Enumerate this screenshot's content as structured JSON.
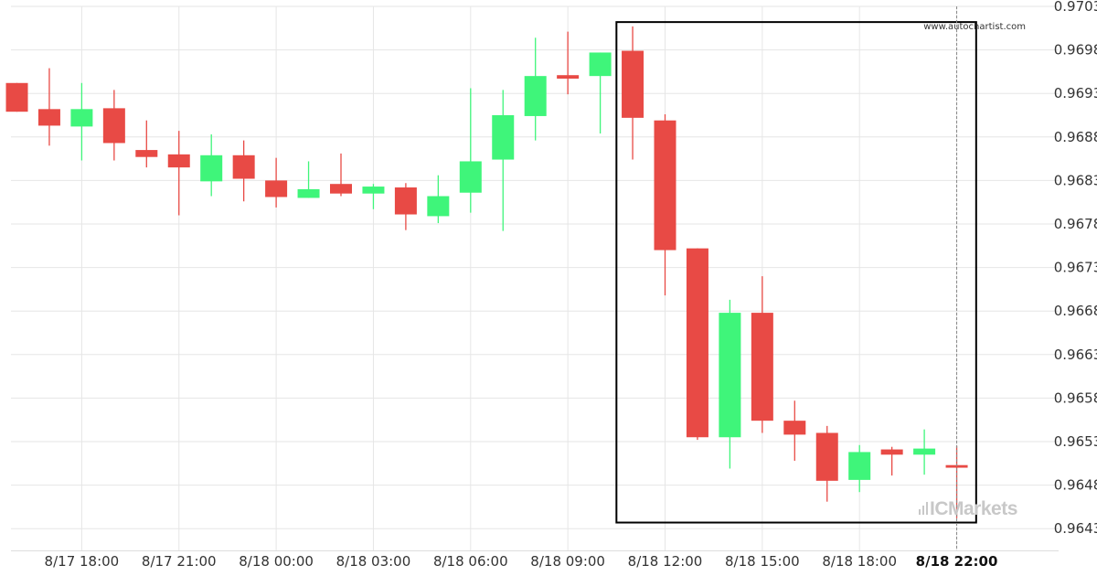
{
  "watermark": "www.autochartist.com",
  "brand": {
    "prefix": "IC",
    "suffix": "Markets"
  },
  "colors": {
    "up": "#3ff57a",
    "down": "#e84a45",
    "grid": "#e6e6e6",
    "box": "#000000",
    "background": "#ffffff"
  },
  "chart_data": {
    "type": "candlestick",
    "title": "",
    "xlabel": "",
    "ylabel": "",
    "ylim": [
      0.96405,
      0.9703
    ],
    "grid": true,
    "y_ticks": [
      "0.9703",
      "0.9698",
      "0.9693",
      "0.9688",
      "0.9683",
      "0.9678",
      "0.9673",
      "0.9668",
      "0.9663",
      "0.9658",
      "0.9653",
      "0.9648",
      "0.9643"
    ],
    "x_ticks": [
      {
        "index": 2,
        "label": "8/17 18:00"
      },
      {
        "index": 5,
        "label": "8/17 21:00"
      },
      {
        "index": 8,
        "label": "8/18 00:00"
      },
      {
        "index": 11,
        "label": "8/18 03:00"
      },
      {
        "index": 14,
        "label": "8/18 06:00"
      },
      {
        "index": 17,
        "label": "8/18 09:00"
      },
      {
        "index": 20,
        "label": "8/18 12:00"
      },
      {
        "index": 23,
        "label": "8/18 15:00"
      },
      {
        "index": 26,
        "label": "8/18 18:00"
      },
      {
        "index": 29,
        "label": "8/18 22:00",
        "bold": true
      }
    ],
    "highlight_range": {
      "from_index": 18.5,
      "to_index": 29.6,
      "high": 0.97012,
      "low": 0.96437
    },
    "current_index": 29,
    "candles": [
      {
        "o": 0.96942,
        "h": 0.96942,
        "l": 0.96909,
        "c": 0.96909
      },
      {
        "o": 0.96912,
        "h": 0.96959,
        "l": 0.9687,
        "c": 0.96893
      },
      {
        "o": 0.96892,
        "h": 0.96942,
        "l": 0.96853,
        "c": 0.96912
      },
      {
        "o": 0.96913,
        "h": 0.96934,
        "l": 0.96853,
        "c": 0.96873
      },
      {
        "o": 0.96865,
        "h": 0.96899,
        "l": 0.96845,
        "c": 0.96857
      },
      {
        "o": 0.9686,
        "h": 0.96887,
        "l": 0.9679,
        "c": 0.96845
      },
      {
        "o": 0.96829,
        "h": 0.96883,
        "l": 0.96812,
        "c": 0.96859
      },
      {
        "o": 0.96859,
        "h": 0.96876,
        "l": 0.96806,
        "c": 0.96832
      },
      {
        "o": 0.9683,
        "h": 0.96856,
        "l": 0.96799,
        "c": 0.96811
      },
      {
        "o": 0.9681,
        "h": 0.96852,
        "l": 0.9681,
        "c": 0.9682
      },
      {
        "o": 0.96826,
        "h": 0.96861,
        "l": 0.96812,
        "c": 0.96815
      },
      {
        "o": 0.96815,
        "h": 0.96826,
        "l": 0.96797,
        "c": 0.96823
      },
      {
        "o": 0.96822,
        "h": 0.96827,
        "l": 0.96773,
        "c": 0.96791
      },
      {
        "o": 0.96789,
        "h": 0.96836,
        "l": 0.96781,
        "c": 0.96812
      },
      {
        "o": 0.96816,
        "h": 0.96936,
        "l": 0.96793,
        "c": 0.96852
      },
      {
        "o": 0.96854,
        "h": 0.96934,
        "l": 0.96772,
        "c": 0.96905
      },
      {
        "o": 0.96904,
        "h": 0.96994,
        "l": 0.96876,
        "c": 0.9695
      },
      {
        "o": 0.96951,
        "h": 0.97001,
        "l": 0.96929,
        "c": 0.96947
      },
      {
        "o": 0.9695,
        "h": 0.96977,
        "l": 0.96884,
        "c": 0.96977
      },
      {
        "o": 0.96979,
        "h": 0.97007,
        "l": 0.96854,
        "c": 0.96902
      },
      {
        "o": 0.96899,
        "h": 0.96906,
        "l": 0.96698,
        "c": 0.9675
      },
      {
        "o": 0.96752,
        "h": 0.96752,
        "l": 0.96532,
        "c": 0.96535
      },
      {
        "o": 0.96535,
        "h": 0.96693,
        "l": 0.96499,
        "c": 0.96678
      },
      {
        "o": 0.96678,
        "h": 0.9672,
        "l": 0.9654,
        "c": 0.96554
      },
      {
        "o": 0.96554,
        "h": 0.96577,
        "l": 0.96508,
        "c": 0.96538
      },
      {
        "o": 0.9654,
        "h": 0.96548,
        "l": 0.96461,
        "c": 0.96485
      },
      {
        "o": 0.96486,
        "h": 0.96526,
        "l": 0.96472,
        "c": 0.96518
      },
      {
        "o": 0.96521,
        "h": 0.96524,
        "l": 0.96491,
        "c": 0.96515
      },
      {
        "o": 0.96515,
        "h": 0.96544,
        "l": 0.96492,
        "c": 0.96522
      },
      {
        "o": 0.96503,
        "h": 0.96525,
        "l": 0.96442,
        "c": 0.965
      }
    ]
  }
}
